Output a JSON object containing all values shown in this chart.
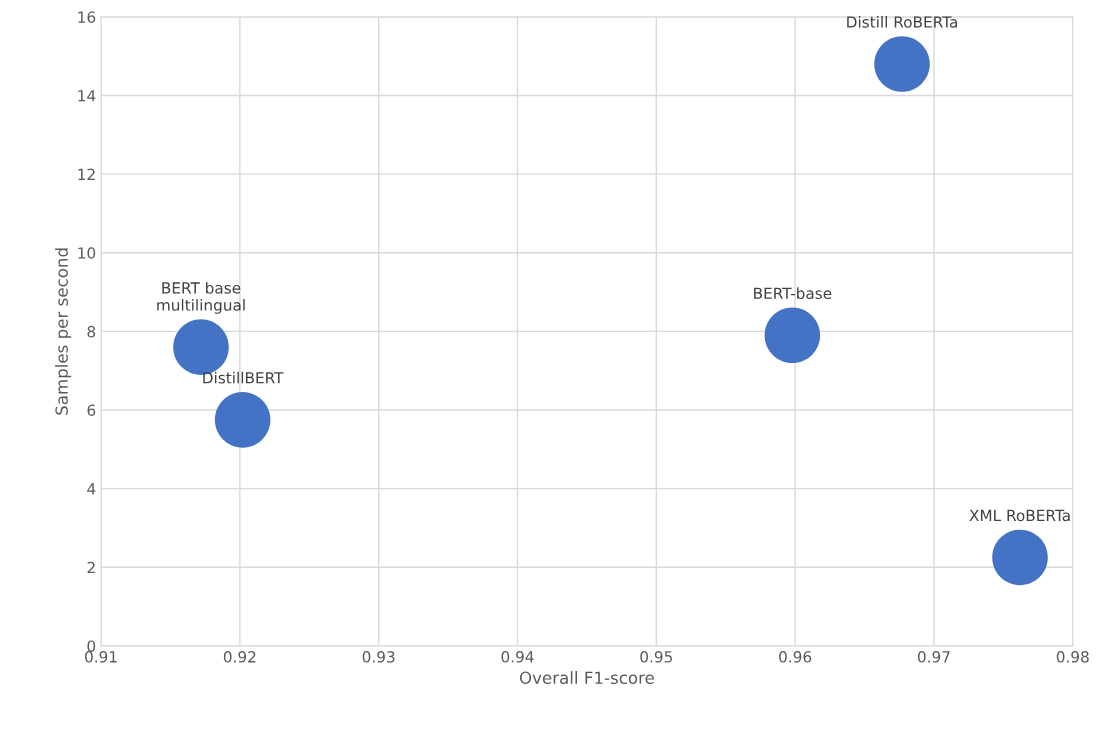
{
  "chart_data": {
    "type": "scatter",
    "xlabel": "Overall F1-score",
    "ylabel": "Samples per second",
    "x": [
      0.9172,
      0.9202,
      0.9598,
      0.9677,
      0.9762
    ],
    "series": [
      {
        "color": "#4472c4",
        "values": [
          7.6,
          5.75,
          7.9,
          14.8,
          2.25
        ]
      }
    ],
    "annotations": [
      {
        "text": "BERT base\nmultilingual",
        "x": 0.9172,
        "y": 7.6
      },
      {
        "text": "DistillBERT",
        "x": 0.9202,
        "y": 5.75
      },
      {
        "text": "BERT-base",
        "x": 0.9598,
        "y": 7.9
      },
      {
        "text": "Distill RoBERTa",
        "x": 0.9677,
        "y": 14.8
      },
      {
        "text": "XML RoBERTa",
        "x": 0.9762,
        "y": 2.25
      }
    ],
    "xlim": [
      0.91,
      0.98
    ],
    "xticks": [
      0.91,
      0.92,
      0.93,
      0.94,
      0.95,
      0.96,
      0.97,
      0.98
    ],
    "ylim": [
      0,
      16
    ],
    "yticks": [
      0,
      2,
      4,
      6,
      8,
      10,
      12,
      14,
      16
    ],
    "grid": true,
    "marker": "circle",
    "legend": false
  }
}
